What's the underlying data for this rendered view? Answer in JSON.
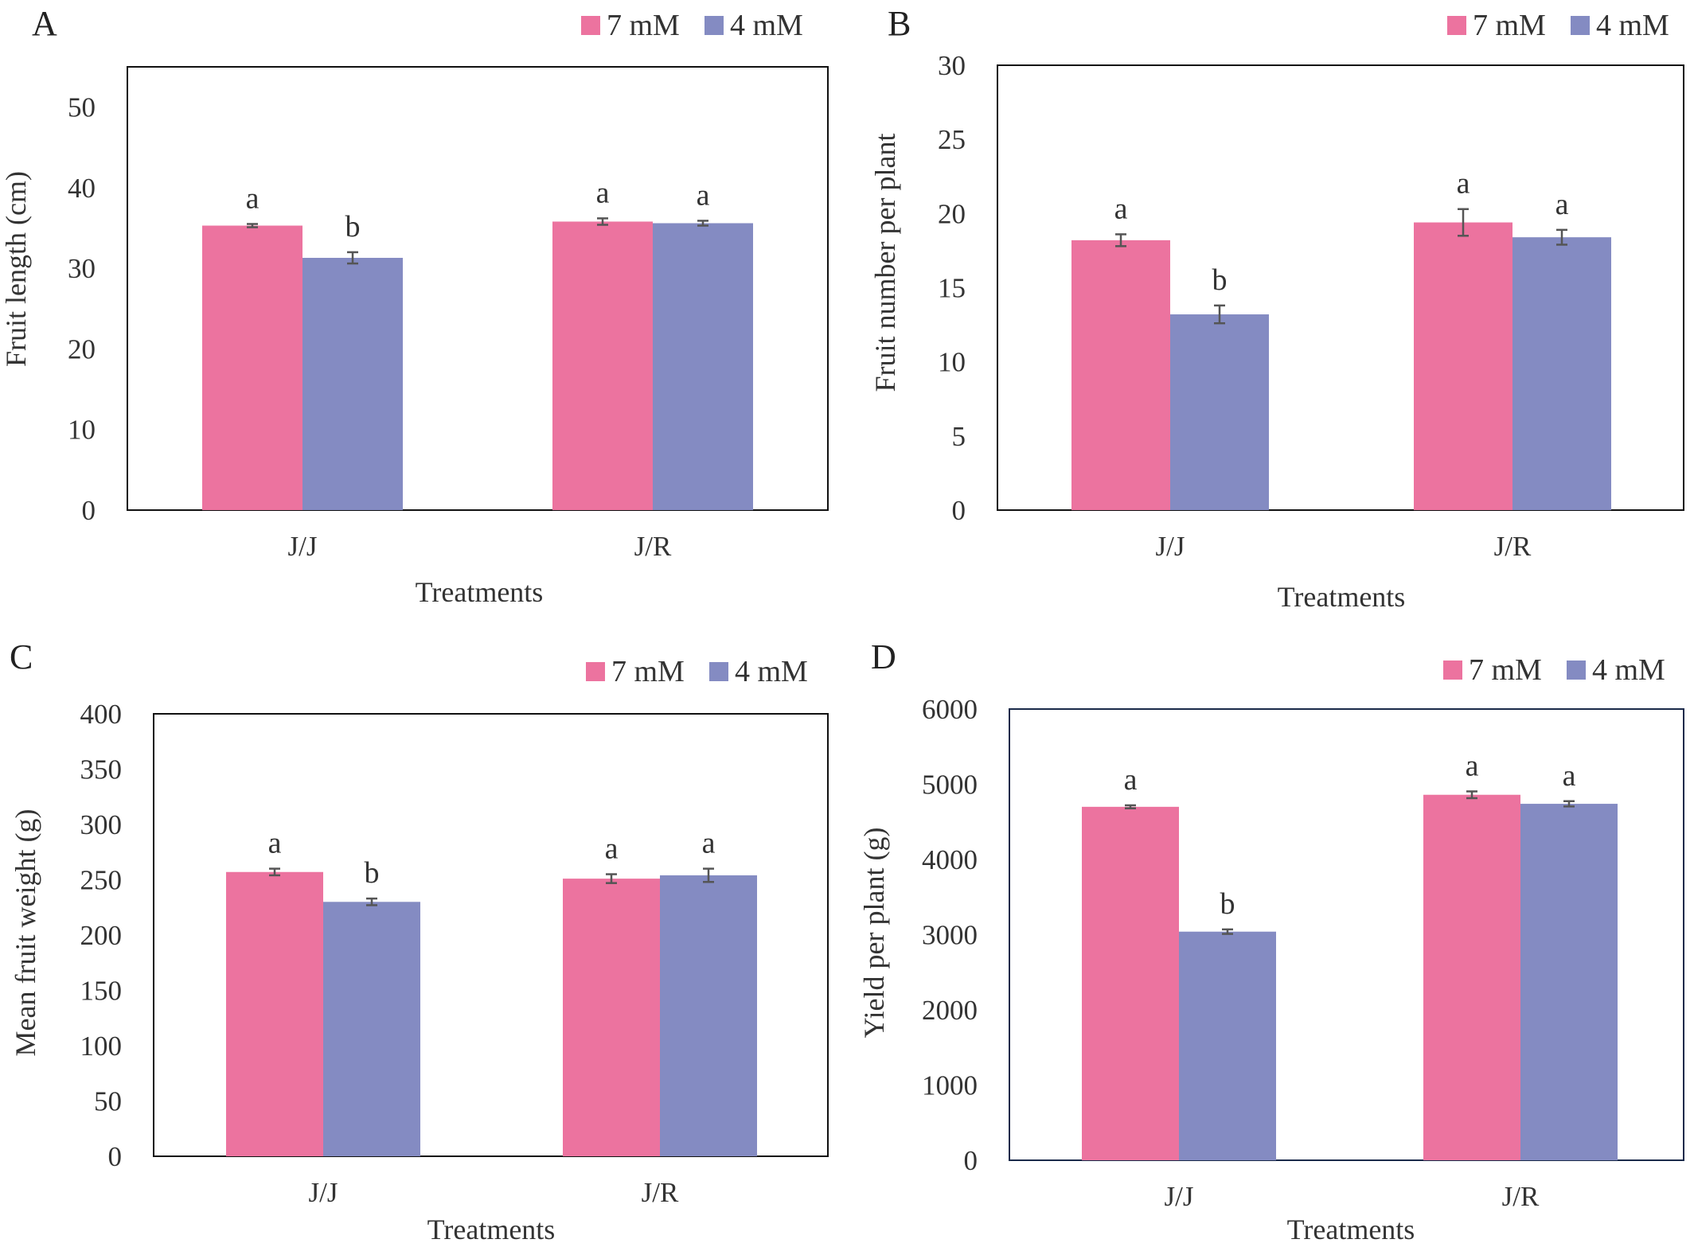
{
  "chart_data": [
    {
      "panel": "A",
      "type": "bar",
      "categories": [
        "J/J",
        "J/R"
      ],
      "series": [
        {
          "name": "7 mM",
          "color": "#ec739f",
          "values": [
            35.3,
            35.8
          ],
          "errors": [
            0.2,
            0.4
          ],
          "letters": [
            "a",
            "a"
          ]
        },
        {
          "name": "4 mM",
          "color": "#848bc2",
          "values": [
            31.3,
            35.6
          ],
          "errors": [
            0.7,
            0.3
          ],
          "letters": [
            "b",
            "a"
          ]
        }
      ],
      "xlabel": "Treatments",
      "ylabel": "Fruit length (cm)",
      "ylim": [
        0,
        55
      ],
      "ticks": [
        0,
        10,
        20,
        30,
        40,
        50
      ],
      "legend": "top-right",
      "grid": false
    },
    {
      "panel": "B",
      "type": "bar",
      "categories": [
        "J/J",
        "J/R"
      ],
      "series": [
        {
          "name": "7 mM",
          "color": "#ec739f",
          "values": [
            18.2,
            19.4
          ],
          "errors": [
            0.4,
            0.9
          ],
          "letters": [
            "a",
            "a"
          ]
        },
        {
          "name": "4 mM",
          "color": "#848bc2",
          "values": [
            13.2,
            18.4
          ],
          "errors": [
            0.6,
            0.5
          ],
          "letters": [
            "b",
            "a"
          ]
        }
      ],
      "xlabel": "Treatments",
      "ylabel": "Fruit number per plant",
      "ylim": [
        0,
        30
      ],
      "ticks": [
        0,
        5,
        10,
        15,
        20,
        25,
        30
      ],
      "legend": "top-right",
      "grid": false
    },
    {
      "panel": "C",
      "type": "bar",
      "categories": [
        "J/J",
        "J/R"
      ],
      "series": [
        {
          "name": "7 mM",
          "color": "#ec739f",
          "values": [
            257,
            251
          ],
          "errors": [
            3,
            4
          ],
          "letters": [
            "a",
            "a"
          ]
        },
        {
          "name": "4 mM",
          "color": "#848bc2",
          "values": [
            230,
            254
          ],
          "errors": [
            3,
            6
          ],
          "letters": [
            "b",
            "a"
          ]
        }
      ],
      "xlabel": "Treatments",
      "ylabel": "Mean fruit weight (g)",
      "ylim": [
        0,
        400
      ],
      "ticks": [
        0,
        50,
        100,
        150,
        200,
        250,
        300,
        350,
        400
      ],
      "legend": "top-right",
      "grid": false
    },
    {
      "panel": "D",
      "type": "bar",
      "categories": [
        "J/J",
        "J/R"
      ],
      "series": [
        {
          "name": "7 mM",
          "color": "#ec739f",
          "values": [
            4700,
            4860
          ],
          "errors": [
            20,
            45
          ],
          "letters": [
            "a",
            "a"
          ]
        },
        {
          "name": "4 mM",
          "color": "#848bc2",
          "values": [
            3040,
            4740
          ],
          "errors": [
            30,
            35
          ],
          "letters": [
            "b",
            "a"
          ]
        }
      ],
      "xlabel": "Treatments",
      "ylabel": "Yield per plant (g)",
      "ylim": [
        0,
        6000
      ],
      "ticks": [
        0,
        1000,
        2000,
        3000,
        4000,
        5000,
        6000
      ],
      "legend": "top-right",
      "grid": false
    }
  ]
}
